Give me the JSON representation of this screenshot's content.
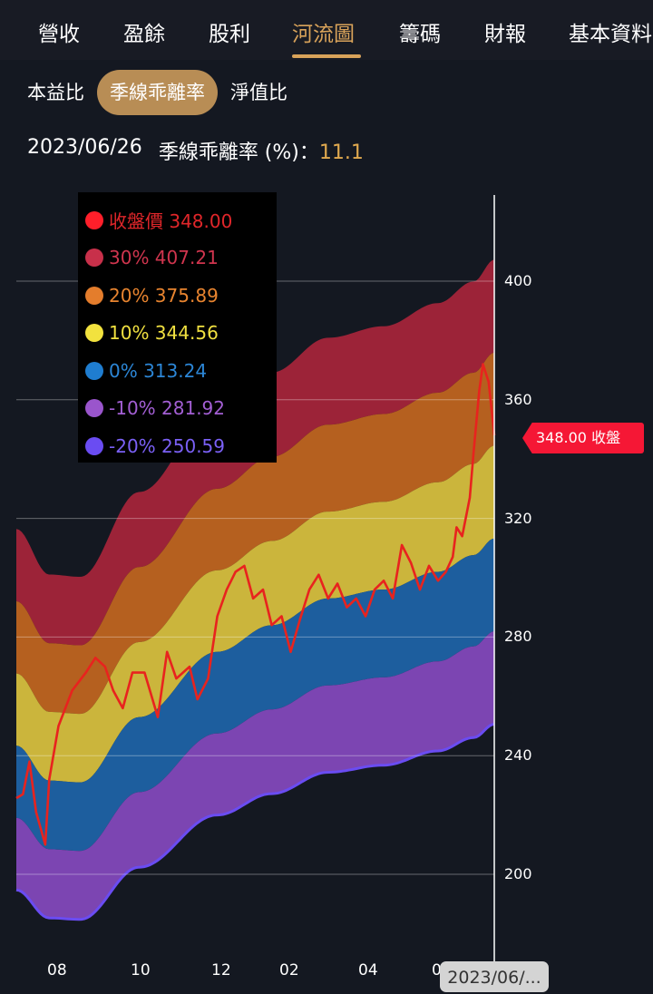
{
  "tabs": [
    {
      "label": "營收"
    },
    {
      "label": "盈餘"
    },
    {
      "label": "股利"
    },
    {
      "label": "河流圖",
      "active": true
    },
    {
      "label": "籌碼"
    },
    {
      "label": "財報"
    },
    {
      "label": "基本資料"
    }
  ],
  "subtabs": [
    {
      "label": "本益比"
    },
    {
      "label": "季線乖離率",
      "active": true
    },
    {
      "label": "淨值比"
    }
  ],
  "info": {
    "date": "2023/06/26",
    "metric": "季線乖離率 (%)：",
    "value": "11.1"
  },
  "legend": [
    {
      "label": "收盤價 348.00",
      "color": "#ff1f2a",
      "text_color": "#e0262a"
    },
    {
      "label": "30% 407.21",
      "color": "#c8304a",
      "text_color": "#d0354e"
    },
    {
      "label": "20% 375.89",
      "color": "#e47d2c",
      "text_color": "#e8842f"
    },
    {
      "label": "10% 344.56",
      "color": "#f2e23e",
      "text_color": "#f0e040"
    },
    {
      "label": "0% 313.24",
      "color": "#1f7dd0",
      "text_color": "#2c86d6"
    },
    {
      "label": "-10% 281.92",
      "color": "#9a55cc",
      "text_color": "#a35fd4"
    },
    {
      "label": "-20% 250.59",
      "color": "#6a4cf2",
      "text_color": "#7a60f5"
    }
  ],
  "price_tag": "348.00 收盤",
  "date_tag": "2023/06/...",
  "chart_data": {
    "type": "area",
    "title": "",
    "ylim": [
      187,
      412
    ],
    "y_ticks": [
      200,
      240,
      280,
      320,
      360,
      400
    ],
    "x_ticks": [
      "08",
      "10",
      "12",
      "02",
      "04",
      "0"
    ],
    "grid": true,
    "band_levels": [
      0.3,
      0.2,
      0.1,
      0,
      -0.1,
      -0.2
    ],
    "band_colors": [
      "#9c2338",
      "#b5601f",
      "#cbb53c",
      "#1d5e9e",
      "#7c45b2"
    ],
    "bottom_line_color": "#6a4cf2",
    "base_series": {
      "dates": [
        "2022-07-01",
        "2022-07-26",
        "2022-08-18",
        "2022-09-30",
        "2022-11-28",
        "2023-01-16",
        "2023-03-02",
        "2023-04-13",
        "2023-05-25",
        "2023-06-15",
        "2023-06-26"
      ],
      "values": [
        243.4,
        231.6,
        231,
        253,
        275,
        284,
        293,
        296,
        302,
        307.6,
        313.24
      ]
    },
    "price_series": {
      "color": "#e8231e",
      "dates": [
        "2022-07-01",
        "2022-07-06",
        "2022-07-11",
        "2022-07-16",
        "2022-07-23",
        "2022-07-26",
        "2022-08-02",
        "2022-08-12",
        "2022-08-22",
        "2022-08-29",
        "2022-09-05",
        "2022-09-11",
        "2022-09-18",
        "2022-09-25",
        "2022-10-04",
        "2022-10-14",
        "2022-10-21",
        "2022-10-28",
        "2022-11-07",
        "2022-11-13",
        "2022-11-21",
        "2022-11-28",
        "2022-12-06",
        "2022-12-14",
        "2022-12-22",
        "2022-12-30",
        "2023-01-08",
        "2023-01-16",
        "2023-01-25",
        "2023-02-02",
        "2023-02-09",
        "2023-02-16",
        "2023-02-23",
        "2023-03-02",
        "2023-03-09",
        "2023-03-16",
        "2023-03-23",
        "2023-03-30",
        "2023-04-06",
        "2023-04-13",
        "2023-04-20",
        "2023-04-27",
        "2023-05-04",
        "2023-05-11",
        "2023-05-18",
        "2023-05-25",
        "2023-05-31",
        "2023-06-04",
        "2023-06-06",
        "2023-06-09",
        "2023-06-13",
        "2023-06-15",
        "2023-06-18",
        "2023-06-20",
        "2023-06-23",
        "2023-06-26"
      ],
      "values": [
        225.7,
        227,
        238,
        221,
        210,
        232,
        250,
        262,
        268,
        273,
        270,
        262,
        256,
        268,
        268,
        253,
        275,
        266,
        270,
        259,
        266,
        287,
        296,
        302,
        304,
        293,
        296,
        284,
        287,
        275,
        286,
        296,
        301,
        293,
        298,
        290,
        293,
        287,
        296,
        299,
        293,
        311,
        305,
        296,
        304,
        299,
        302,
        307,
        317,
        314,
        327,
        342,
        363,
        372,
        366,
        348
      ]
    }
  }
}
